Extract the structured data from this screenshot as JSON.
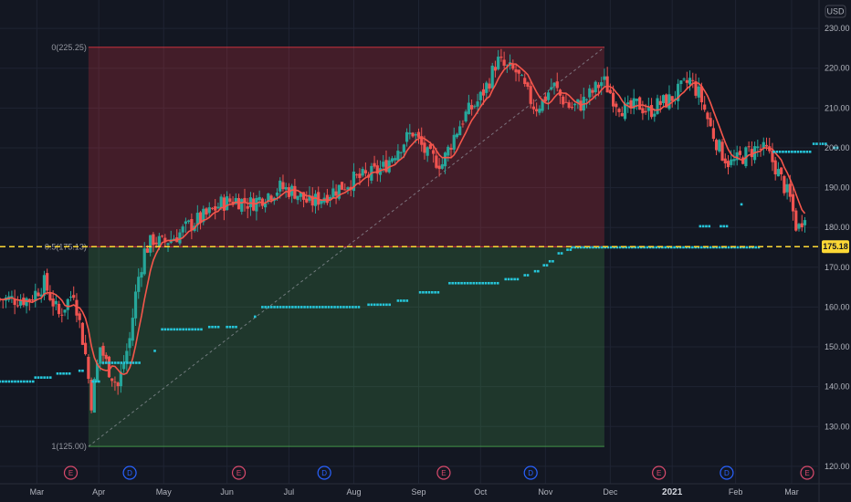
{
  "chart_data": {
    "type": "candlestick",
    "currency": "USD",
    "ylim": [
      117,
      233
    ],
    "y_ticks": [
      120,
      130,
      140,
      150,
      160,
      170,
      180,
      190,
      200,
      210,
      220,
      230
    ],
    "x_ticks": [
      {
        "label": "Mar",
        "t": 0.5
      },
      {
        "label": "Apr",
        "t": 4.7
      },
      {
        "label": "May",
        "t": 9.1
      },
      {
        "label": "Jun",
        "t": 13.4
      },
      {
        "label": "Jul",
        "t": 17.6
      },
      {
        "label": "Aug",
        "t": 22.0
      },
      {
        "label": "Sep",
        "t": 26.4
      },
      {
        "label": "Oct",
        "t": 30.6
      },
      {
        "label": "Nov",
        "t": 35.0
      },
      {
        "label": "Dec",
        "t": 39.4
      },
      {
        "label": "2021",
        "t": 43.6,
        "emphasis": true
      },
      {
        "label": "Feb",
        "t": 47.9
      },
      {
        "label": "Mar",
        "t": 51.7
      }
    ],
    "t_range": [
      -2,
      53.5
    ],
    "price_key": [
      [
        0,
        162
      ],
      [
        1,
        166
      ],
      [
        2,
        158
      ],
      [
        3,
        164
      ],
      [
        3.8,
        148
      ],
      [
        4.2,
        136
      ],
      [
        4.8,
        150
      ],
      [
        5.3,
        145
      ],
      [
        6.0,
        140
      ],
      [
        6.8,
        152
      ],
      [
        7.3,
        166
      ],
      [
        7.8,
        174
      ],
      [
        8.4,
        177
      ],
      [
        9.0,
        176
      ],
      [
        10.0,
        178
      ],
      [
        11.0,
        181
      ],
      [
        12.0,
        183
      ],
      [
        13.0,
        186
      ],
      [
        14.0,
        187
      ],
      [
        15.0,
        186
      ],
      [
        16.0,
        188
      ],
      [
        17.0,
        190
      ],
      [
        18.0,
        189
      ],
      [
        19.0,
        186
      ],
      [
        20.0,
        188
      ],
      [
        21.0,
        190
      ],
      [
        22.0,
        192
      ],
      [
        23.0,
        193
      ],
      [
        24.0,
        195
      ],
      [
        25.0,
        200
      ],
      [
        26.0,
        204
      ],
      [
        27.0,
        198
      ],
      [
        28.0,
        196
      ],
      [
        28.8,
        203
      ],
      [
        29.5,
        208
      ],
      [
        30.5,
        212
      ],
      [
        31.2,
        217
      ],
      [
        31.7,
        222
      ],
      [
        32.3,
        220
      ],
      [
        33.0,
        219
      ],
      [
        33.7,
        214
      ],
      [
        34.3,
        210
      ],
      [
        34.9,
        212
      ],
      [
        35.5,
        216
      ],
      [
        36.0,
        213
      ],
      [
        36.7,
        210
      ],
      [
        37.4,
        211
      ],
      [
        38.2,
        214
      ],
      [
        38.9,
        217
      ],
      [
        39.7,
        212
      ],
      [
        40.5,
        209
      ],
      [
        41.3,
        211
      ],
      [
        42.0,
        209
      ],
      [
        42.7,
        211
      ],
      [
        43.4,
        212
      ],
      [
        44.0,
        214
      ],
      [
        44.8,
        217
      ],
      [
        45.5,
        213
      ],
      [
        46.2,
        205
      ],
      [
        46.9,
        199
      ],
      [
        47.5,
        196
      ],
      [
        48.1,
        197
      ],
      [
        48.8,
        199
      ],
      [
        49.4,
        200
      ],
      [
        50.0,
        199
      ],
      [
        50.5,
        196
      ],
      [
        51.0,
        192
      ],
      [
        51.6,
        187
      ],
      [
        52.1,
        179
      ],
      [
        52.6,
        184
      ]
    ],
    "support_dots": [
      {
        "from": -2.0,
        "to": 0.3,
        "y": 141.3
      },
      {
        "from": 0.4,
        "to": 1.5,
        "y": 142.3
      },
      {
        "from": 1.9,
        "to": 2.8,
        "y": 143.3
      },
      {
        "from": 3.4,
        "to": 3.8,
        "y": 144.0
      },
      {
        "from": 4.3,
        "to": 4.9,
        "y": 141.3
      },
      {
        "from": 5.0,
        "to": 7.6,
        "y": 146.0
      },
      {
        "from": 8.5,
        "to": 8.6,
        "y": 149.0
      },
      {
        "from": 9.0,
        "to": 11.8,
        "y": 154.4
      },
      {
        "from": 12.2,
        "to": 12.9,
        "y": 155.0
      },
      {
        "from": 13.4,
        "to": 14.2,
        "y": 155.0
      },
      {
        "from": 15.3,
        "to": 15.4,
        "y": 157.6
      },
      {
        "from": 15.8,
        "to": 22.5,
        "y": 160.0
      },
      {
        "from": 23.0,
        "to": 24.5,
        "y": 160.6
      },
      {
        "from": 25.0,
        "to": 25.7,
        "y": 161.6
      },
      {
        "from": 26.5,
        "to": 27.8,
        "y": 163.7
      },
      {
        "from": 28.5,
        "to": 31.9,
        "y": 166.0
      },
      {
        "from": 32.3,
        "to": 33.3,
        "y": 167.0
      },
      {
        "from": 33.6,
        "to": 33.9,
        "y": 168.0
      },
      {
        "from": 34.3,
        "to": 34.6,
        "y": 169.0
      },
      {
        "from": 34.9,
        "to": 35.1,
        "y": 170.5
      },
      {
        "from": 35.3,
        "to": 35.6,
        "y": 171.5
      },
      {
        "from": 35.9,
        "to": 36.2,
        "y": 173.5
      },
      {
        "from": 36.5,
        "to": 36.7,
        "y": 174.4
      },
      {
        "from": 36.8,
        "to": 49.5,
        "y": 175.0
      },
      {
        "from": 45.5,
        "to": 46.3,
        "y": 180.3
      },
      {
        "from": 46.9,
        "to": 47.5,
        "y": 180.3
      },
      {
        "from": 48.3,
        "to": 48.35,
        "y": 185.8
      },
      {
        "from": 50.5,
        "to": 53.0,
        "y": 199.0
      },
      {
        "from": 53.2,
        "to": 54.2,
        "y": 201.0
      },
      {
        "from": 54.6,
        "to": 54.9,
        "y": 200.0
      }
    ],
    "fib_retracement": {
      "start_t": 4.0,
      "end_t": 39.0,
      "levels": [
        {
          "ratio": "0",
          "price": 225.25,
          "label": "0(225.25)",
          "color": "#f23645"
        },
        {
          "ratio": "0.5",
          "price": 175.13,
          "label": "0.5(175.13)",
          "color": "#f23645"
        },
        {
          "ratio": "1",
          "price": 125.0,
          "label": "1(125.00)",
          "color": "#4caf50"
        }
      ]
    },
    "horizontal_line": {
      "price": 175.18,
      "label": "175.18",
      "color": "#fdd835"
    },
    "events": [
      {
        "kind": "E",
        "t": 2.8
      },
      {
        "kind": "D",
        "t": 6.8
      },
      {
        "kind": "E",
        "t": 14.2
      },
      {
        "kind": "D",
        "t": 20.0
      },
      {
        "kind": "E",
        "t": 28.1
      },
      {
        "kind": "D",
        "t": 34.0
      },
      {
        "kind": "E",
        "t": 42.7
      },
      {
        "kind": "D",
        "t": 47.3
      },
      {
        "kind": "E",
        "t": 57.0
      }
    ],
    "colors": {
      "background": "#131722",
      "grid": "#1f2433",
      "up": "#26a69a",
      "down": "#ef5350",
      "ma_line": "#f5564b",
      "dots": "#26c6da",
      "earnings": "#d84a6c",
      "dividends": "#2962ff"
    }
  }
}
